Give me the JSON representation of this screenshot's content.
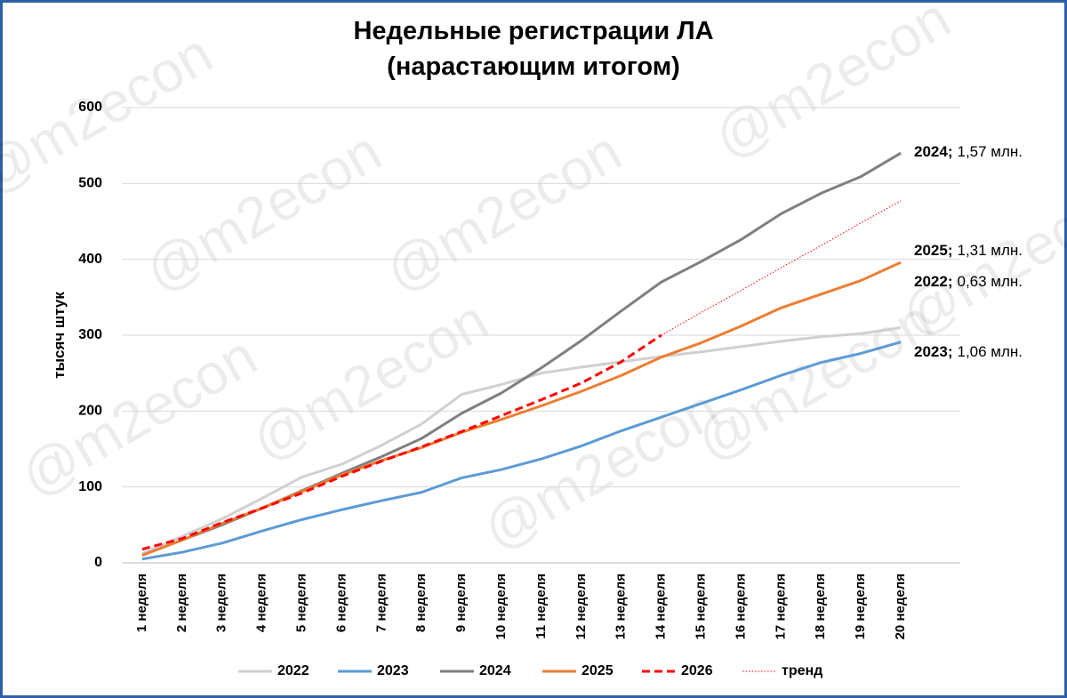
{
  "chart_data": {
    "type": "line",
    "title": [
      "Недельные регистрации ЛА",
      "(нарастающим итогом)"
    ],
    "y_label": "тысяч штук",
    "watermark": "@m2econ",
    "categories": [
      "1 неделя",
      "2 неделя",
      "3 неделя",
      "4 неделя",
      "5 неделя",
      "6 неделя",
      "7 неделя",
      "8 неделя",
      "9 неделя",
      "10 неделя",
      "11 неделя",
      "12 неделя",
      "13 неделя",
      "14 неделя",
      "15 неделя",
      "16 неделя",
      "17 неделя",
      "18 неделя",
      "19 неделя",
      "20 неделя"
    ],
    "series": [
      {
        "name": "2022",
        "color": "#d0d0d0",
        "dash": "solid",
        "values": [
          12,
          35,
          58,
          85,
          113,
          130,
          155,
          183,
          222,
          235,
          250,
          258,
          265,
          272,
          278,
          285,
          292,
          298,
          302,
          310
        ]
      },
      {
        "name": "2023",
        "color": "#5b9bd5",
        "dash": "solid",
        "values": [
          5,
          14,
          26,
          42,
          57,
          70,
          82,
          93,
          112,
          123,
          137,
          154,
          174,
          192,
          210,
          228,
          247,
          264,
          276,
          291
        ]
      },
      {
        "name": "2024",
        "color": "#7f7f7f",
        "dash": "solid",
        "values": [
          10,
          30,
          50,
          72,
          95,
          118,
          140,
          164,
          197,
          224,
          257,
          293,
          332,
          370,
          397,
          426,
          460,
          487,
          509,
          540
        ]
      },
      {
        "name": "2025",
        "color": "#ed7d31",
        "dash": "solid",
        "values": [
          10,
          30,
          52,
          72,
          94,
          116,
          135,
          152,
          172,
          189,
          207,
          226,
          247,
          271,
          290,
          312,
          336,
          354,
          372,
          396
        ]
      },
      {
        "name": "2026",
        "color": "#ff0000",
        "dash": "dashed",
        "values": [
          18,
          32,
          53,
          72,
          92,
          114,
          134,
          153,
          173,
          194,
          215,
          237,
          265,
          300,
          null,
          null,
          null,
          null,
          null,
          null
        ]
      },
      {
        "name": "тренд",
        "color": "#ff0000",
        "dash": "dotted",
        "values": [
          null,
          null,
          null,
          null,
          null,
          null,
          null,
          null,
          null,
          null,
          null,
          null,
          null,
          300,
          330,
          359,
          389,
          418,
          448,
          477
        ]
      }
    ],
    "annotations": [
      {
        "year": "2024;",
        "text": "1,57 млн."
      },
      {
        "year": "2025;",
        "text": "1,31 млн."
      },
      {
        "year": "2022;",
        "text": "0,63 млн."
      },
      {
        "year": "2023;",
        "text": "1,06 млн."
      }
    ],
    "ylim": [
      0,
      600
    ],
    "yticks": [
      0,
      100,
      200,
      300,
      400,
      500,
      600
    ],
    "grid": true,
    "legend": "bottom"
  }
}
